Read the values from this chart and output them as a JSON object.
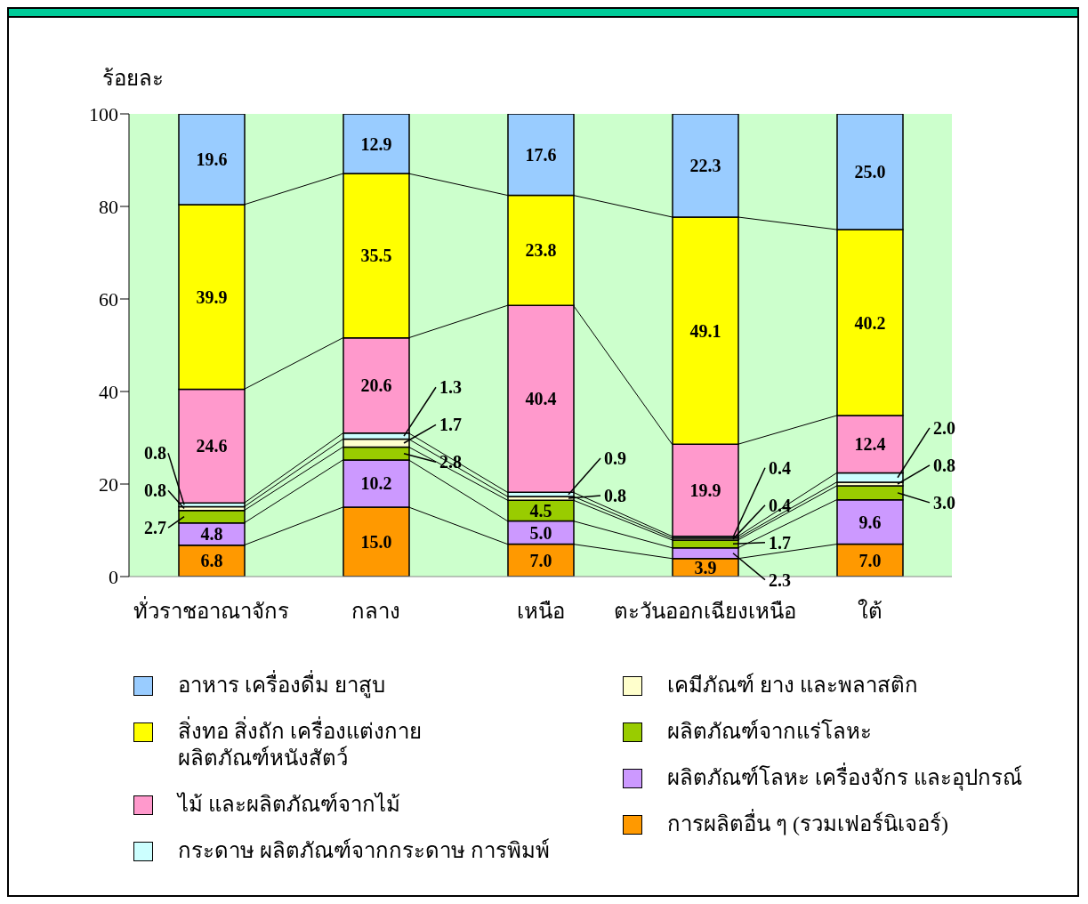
{
  "chart_data": {
    "type": "bar",
    "stacked": true,
    "ylabel": "ร้อยละ",
    "categories": [
      "ทั่วราชอาณาจักร",
      "กลาง",
      "เหนือ",
      "ตะวันออกเฉียงเหนือ",
      "ใต้"
    ],
    "series": [
      {
        "name": "การผลิตอื่น ๆ (รวมเฟอร์นิเจอร์)",
        "color": "#ff9900",
        "values": [
          6.8,
          15.0,
          7.0,
          3.9,
          7.0
        ],
        "value_labels": [
          "6.8",
          "15.0",
          "7.0",
          "3.9",
          "7.0"
        ]
      },
      {
        "name": "ผลิตภัณฑ์โลหะ เครื่องจักร และอุปกรณ์",
        "color": "#cc99ff",
        "values": [
          4.8,
          10.2,
          5.0,
          2.3,
          9.6
        ],
        "value_labels": [
          "4.8",
          "10.2",
          "5.0",
          "2.3",
          "9.6"
        ]
      },
      {
        "name": "ผลิตภัณฑ์จากแร่โลหะ",
        "color": "#99cc00",
        "values": [
          2.7,
          2.8,
          4.5,
          1.7,
          3.0
        ],
        "value_labels": [
          "2.7",
          "2.8",
          "4.5",
          "1.7",
          "3.0"
        ]
      },
      {
        "name": "เคมีภัณฑ์ ยาง และพลาสติก",
        "color": "#ffffcc",
        "values": [
          0.8,
          1.7,
          0.8,
          0.4,
          0.8
        ],
        "value_labels": [
          "0.8",
          "1.7",
          "0.8",
          "0.4",
          "0.8"
        ]
      },
      {
        "name": "กระดาษ ผลิตภัณฑ์จากกระดาษ การพิมพ์",
        "color": "#ccffff",
        "values": [
          0.8,
          1.3,
          0.9,
          0.4,
          2.0
        ],
        "value_labels": [
          "0.8",
          "1.3",
          "0.9",
          "0.4",
          "2.0"
        ]
      },
      {
        "name": "ไม้ และผลิตภัณฑ์จากไม้",
        "color": "#ff99cc",
        "values": [
          24.6,
          20.6,
          40.4,
          19.9,
          12.4
        ],
        "value_labels": [
          "24.6",
          "20.6",
          "40.4",
          "19.9",
          "12.4"
        ]
      },
      {
        "name": "สิ่งทอ  สิ่งถัก  เครื่องแต่งกาย ผลิตภัณฑ์หนังสัตว์",
        "color": "#ffff00",
        "values": [
          39.9,
          35.5,
          23.8,
          49.1,
          40.2
        ],
        "value_labels": [
          "39.9",
          "35.5",
          "23.8",
          "49.1",
          "40.2"
        ]
      },
      {
        "name": "อาหาร เครื่องดื่ม ยาสูบ",
        "color": "#99ccff",
        "values": [
          19.6,
          12.9,
          17.6,
          22.3,
          25.0
        ],
        "value_labels": [
          "19.6",
          "12.9",
          "17.6",
          "22.3",
          "25.0"
        ]
      }
    ],
    "ylim": [
      0,
      100
    ],
    "yticks": [
      0,
      20,
      40,
      60,
      80,
      100
    ],
    "legend": "bottom",
    "grid": false
  }
}
